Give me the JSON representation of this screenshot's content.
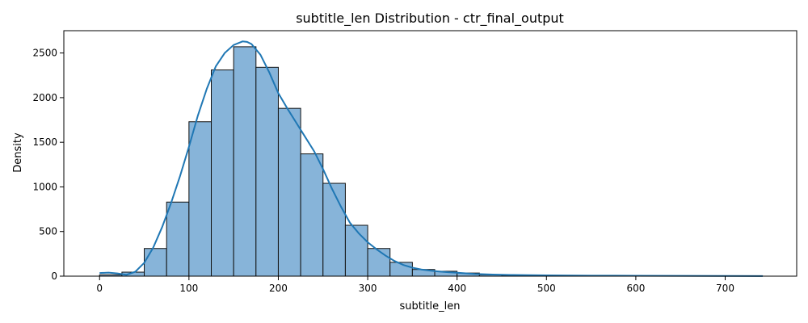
{
  "chart_data": {
    "type": "bar",
    "title": "subtitle_len Distribution - ctr_final_output",
    "xlabel": "subtitle_len",
    "ylabel": "Density",
    "xlim": [
      -40,
      780
    ],
    "ylim": [
      0,
      2750
    ],
    "xticks": [
      0,
      100,
      200,
      300,
      400,
      500,
      600,
      700
    ],
    "yticks": [
      0,
      500,
      1000,
      1500,
      2000,
      2500
    ],
    "grid": false,
    "legend": "none",
    "bins": [
      {
        "start": 0,
        "end": 25,
        "value": 15
      },
      {
        "start": 25,
        "end": 50,
        "value": 45
      },
      {
        "start": 50,
        "end": 75,
        "value": 310
      },
      {
        "start": 75,
        "end": 100,
        "value": 830
      },
      {
        "start": 100,
        "end": 125,
        "value": 1730
      },
      {
        "start": 125,
        "end": 150,
        "value": 2310
      },
      {
        "start": 150,
        "end": 175,
        "value": 2570
      },
      {
        "start": 175,
        "end": 200,
        "value": 2340
      },
      {
        "start": 200,
        "end": 225,
        "value": 1880
      },
      {
        "start": 225,
        "end": 250,
        "value": 1370
      },
      {
        "start": 250,
        "end": 275,
        "value": 1040
      },
      {
        "start": 275,
        "end": 300,
        "value": 570
      },
      {
        "start": 300,
        "end": 325,
        "value": 310
      },
      {
        "start": 325,
        "end": 350,
        "value": 155
      },
      {
        "start": 350,
        "end": 375,
        "value": 75
      },
      {
        "start": 375,
        "end": 400,
        "value": 55
      },
      {
        "start": 400,
        "end": 425,
        "value": 35
      },
      {
        "start": 425,
        "end": 450,
        "value": 15
      },
      {
        "start": 450,
        "end": 475,
        "value": 10
      },
      {
        "start": 475,
        "end": 500,
        "value": 8
      },
      {
        "start": 500,
        "end": 525,
        "value": 5
      },
      {
        "start": 525,
        "end": 550,
        "value": 4
      },
      {
        "start": 550,
        "end": 575,
        "value": 3
      },
      {
        "start": 575,
        "end": 600,
        "value": 2
      },
      {
        "start": 600,
        "end": 625,
        "value": 2
      },
      {
        "start": 625,
        "end": 650,
        "value": 1
      },
      {
        "start": 650,
        "end": 675,
        "value": 1
      },
      {
        "start": 675,
        "end": 700,
        "value": 1
      },
      {
        "start": 700,
        "end": 725,
        "value": 1
      },
      {
        "start": 725,
        "end": 742,
        "value": 1
      }
    ],
    "kde": {
      "x": [
        0,
        10,
        20,
        30,
        40,
        50,
        60,
        70,
        80,
        90,
        100,
        110,
        120,
        130,
        140,
        150,
        160,
        165,
        170,
        180,
        190,
        200,
        210,
        220,
        230,
        240,
        250,
        260,
        270,
        280,
        290,
        300,
        310,
        320,
        330,
        340,
        350,
        360,
        370,
        380,
        390,
        400,
        420,
        440,
        460,
        480,
        500,
        550,
        600,
        650,
        700,
        742
      ],
      "y": [
        35,
        40,
        30,
        15,
        50,
        150,
        320,
        550,
        820,
        1120,
        1450,
        1800,
        2100,
        2350,
        2500,
        2590,
        2630,
        2625,
        2600,
        2480,
        2280,
        2050,
        1880,
        1720,
        1560,
        1400,
        1200,
        980,
        780,
        600,
        480,
        380,
        300,
        230,
        170,
        125,
        95,
        75,
        62,
        52,
        44,
        38,
        25,
        18,
        14,
        11,
        9,
        6,
        5,
        3,
        2,
        1
      ]
    },
    "colors": {
      "bar_fill": "#87b4d9",
      "bar_edge": "#111111",
      "line": "#1f77b4"
    }
  }
}
